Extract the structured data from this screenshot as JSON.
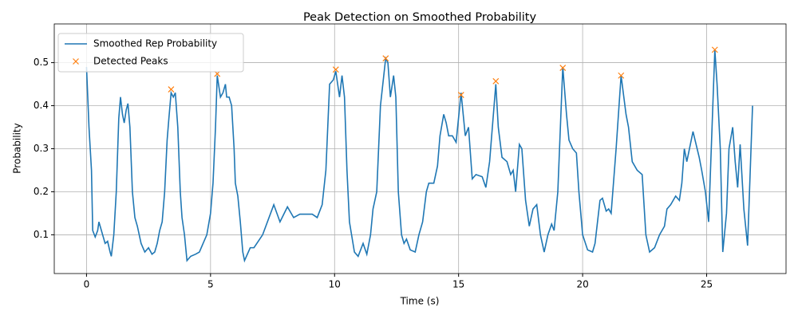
{
  "chart_data": {
    "type": "line",
    "title": "Peak Detection on Smoothed Probability",
    "xlabel": "Time (s)",
    "ylabel": "Probability",
    "xlim": [
      -1.3,
      28.2
    ],
    "ylim": [
      0.01,
      0.59
    ],
    "xticks": [
      0,
      5,
      10,
      15,
      20,
      25
    ],
    "yticks": [
      0.1,
      0.2,
      0.3,
      0.4,
      0.5
    ],
    "grid": true,
    "legend": "upper left",
    "series": [
      {
        "name": "Smoothed Rep Probability",
        "color": "#1f77b4",
        "mode": "line",
        "x": [
          0,
          0.1,
          0.2,
          0.25,
          0.35,
          0.45,
          0.5,
          0.6,
          0.75,
          0.85,
          0.95,
          1.0,
          1.1,
          1.2,
          1.3,
          1.37,
          1.45,
          1.52,
          1.6,
          1.67,
          1.75,
          1.85,
          1.95,
          2.05,
          2.2,
          2.35,
          2.5,
          2.64,
          2.75,
          2.85,
          2.95,
          3.05,
          3.15,
          3.25,
          3.32,
          3.41,
          3.5,
          3.58,
          3.68,
          3.78,
          3.85,
          3.95,
          4.05,
          4.2,
          4.4,
          4.55,
          4.7,
          4.85,
          5.0,
          5.1,
          5.2,
          5.27,
          5.4,
          5.5,
          5.6,
          5.65,
          5.75,
          5.85,
          5.95,
          6.0,
          6.1,
          6.2,
          6.3,
          6.37,
          6.6,
          6.75,
          7.1,
          7.55,
          7.8,
          8.1,
          8.35,
          8.6,
          9.1,
          9.3,
          9.5,
          9.65,
          9.8,
          9.95,
          10.05,
          10.2,
          10.3,
          10.4,
          10.5,
          10.6,
          10.8,
          10.95,
          11.15,
          11.3,
          11.45,
          11.55,
          11.7,
          11.85,
          12.06,
          12.15,
          12.25,
          12.38,
          12.47,
          12.57,
          12.7,
          12.8,
          12.9,
          13.05,
          13.25,
          13.4,
          13.55,
          13.7,
          13.8,
          14.0,
          14.15,
          14.25,
          14.4,
          14.5,
          14.6,
          14.75,
          14.9,
          15.1,
          15.27,
          15.4,
          15.55,
          15.7,
          15.95,
          16.1,
          16.25,
          16.5,
          16.6,
          16.75,
          16.95,
          17.1,
          17.2,
          17.3,
          17.45,
          17.55,
          17.7,
          17.85,
          18.0,
          18.15,
          18.3,
          18.45,
          18.6,
          18.75,
          18.85,
          19.0,
          19.2,
          19.35,
          19.45,
          19.6,
          19.75,
          19.85,
          20.0,
          20.2,
          20.4,
          20.5,
          20.7,
          20.8,
          20.95,
          21.05,
          21.15,
          21.35,
          21.55,
          21.75,
          21.85,
          22.0,
          22.2,
          22.4,
          22.55,
          22.7,
          22.9,
          23.1,
          23.3,
          23.4,
          23.55,
          23.75,
          23.9,
          24.0,
          24.1,
          24.2,
          24.45,
          24.7,
          24.8,
          24.95,
          25.08,
          25.33,
          25.42,
          25.55,
          25.65,
          25.8,
          25.9,
          26.05,
          26.15,
          26.25,
          26.35,
          26.5,
          26.65,
          26.85
        ],
        "values": [
          0.49,
          0.35,
          0.25,
          0.11,
          0.095,
          0.11,
          0.13,
          0.11,
          0.08,
          0.085,
          0.06,
          0.05,
          0.1,
          0.2,
          0.37,
          0.42,
          0.38,
          0.36,
          0.39,
          0.405,
          0.35,
          0.2,
          0.14,
          0.12,
          0.08,
          0.06,
          0.07,
          0.055,
          0.06,
          0.08,
          0.11,
          0.13,
          0.2,
          0.32,
          0.37,
          0.43,
          0.42,
          0.43,
          0.35,
          0.2,
          0.14,
          0.1,
          0.04,
          0.05,
          0.055,
          0.06,
          0.08,
          0.1,
          0.15,
          0.22,
          0.35,
          0.47,
          0.42,
          0.43,
          0.45,
          0.42,
          0.42,
          0.4,
          0.3,
          0.22,
          0.19,
          0.13,
          0.06,
          0.04,
          0.07,
          0.07,
          0.1,
          0.17,
          0.13,
          0.165,
          0.14,
          0.148,
          0.148,
          0.14,
          0.17,
          0.25,
          0.45,
          0.46,
          0.48,
          0.42,
          0.47,
          0.42,
          0.25,
          0.13,
          0.06,
          0.05,
          0.08,
          0.055,
          0.1,
          0.16,
          0.2,
          0.4,
          0.51,
          0.5,
          0.42,
          0.47,
          0.42,
          0.2,
          0.1,
          0.08,
          0.09,
          0.065,
          0.06,
          0.1,
          0.13,
          0.2,
          0.22,
          0.22,
          0.26,
          0.33,
          0.38,
          0.36,
          0.33,
          0.33,
          0.315,
          0.43,
          0.33,
          0.35,
          0.23,
          0.24,
          0.235,
          0.21,
          0.27,
          0.45,
          0.35,
          0.28,
          0.27,
          0.24,
          0.25,
          0.2,
          0.31,
          0.3,
          0.18,
          0.12,
          0.16,
          0.17,
          0.1,
          0.06,
          0.1,
          0.125,
          0.11,
          0.2,
          0.49,
          0.38,
          0.32,
          0.3,
          0.29,
          0.2,
          0.1,
          0.065,
          0.06,
          0.08,
          0.18,
          0.185,
          0.155,
          0.16,
          0.15,
          0.3,
          0.47,
          0.38,
          0.35,
          0.27,
          0.25,
          0.24,
          0.1,
          0.06,
          0.07,
          0.1,
          0.12,
          0.16,
          0.17,
          0.19,
          0.18,
          0.22,
          0.3,
          0.27,
          0.34,
          0.28,
          0.25,
          0.2,
          0.13,
          0.53,
          0.45,
          0.3,
          0.06,
          0.15,
          0.3,
          0.35,
          0.27,
          0.21,
          0.31,
          0.16,
          0.075,
          0.4
        ]
      },
      {
        "name": "Detected Peaks",
        "color": "#ff7f0e",
        "mode": "markers",
        "x": [
          3.41,
          5.27,
          10.05,
          12.06,
          15.1,
          16.5,
          19.2,
          21.55,
          25.33
        ],
        "values": [
          0.438,
          0.474,
          0.484,
          0.51,
          0.425,
          0.457,
          0.488,
          0.47,
          0.53
        ]
      }
    ]
  }
}
